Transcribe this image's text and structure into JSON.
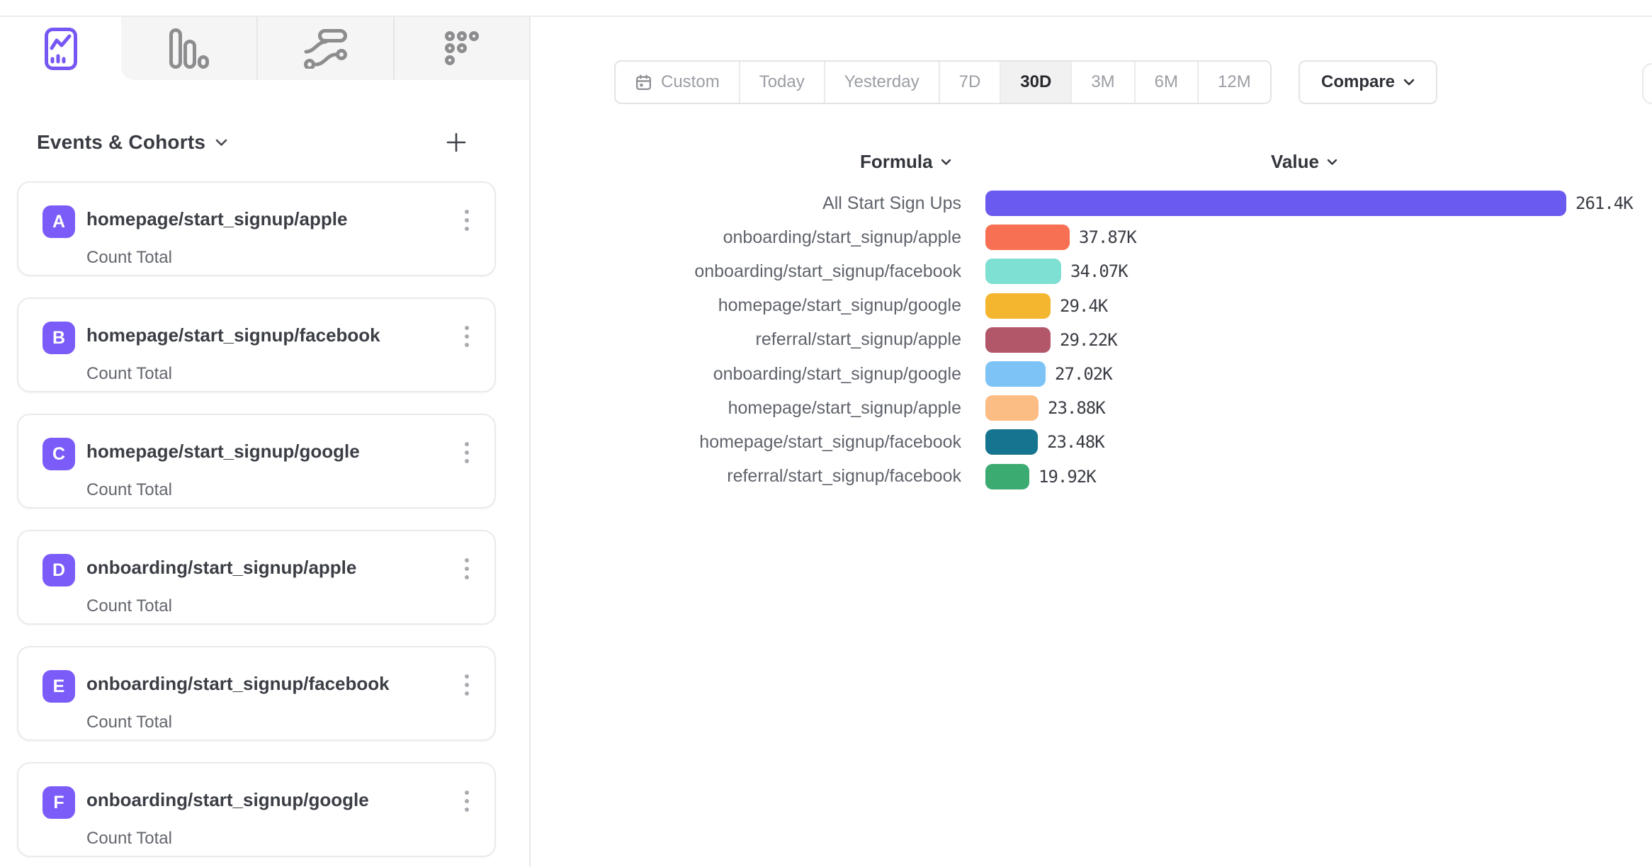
{
  "tab_bar": {
    "tabs": [
      {
        "name": "insights",
        "icon": "line-chart-icon",
        "active": true
      },
      {
        "name": "funnels",
        "icon": "bar-chart-icon",
        "active": false
      },
      {
        "name": "flows",
        "icon": "flows-icon",
        "active": false
      },
      {
        "name": "retention",
        "icon": "retention-icon",
        "active": false
      }
    ],
    "active_color": "#7757F3",
    "inactive_color": "#8d8d90"
  },
  "sidebar": {
    "title": "Events & Cohorts",
    "add_button": "+",
    "badge_color": "#7B5CF9",
    "cards": [
      {
        "badge": "A",
        "title": "homepage/start_signup/apple",
        "subtitle": "Count Total"
      },
      {
        "badge": "B",
        "title": "homepage/start_signup/facebook",
        "subtitle": "Count Total"
      },
      {
        "badge": "C",
        "title": "homepage/start_signup/google",
        "subtitle": "Count Total"
      },
      {
        "badge": "D",
        "title": "onboarding/start_signup/apple",
        "subtitle": "Count Total"
      },
      {
        "badge": "E",
        "title": "onboarding/start_signup/facebook",
        "subtitle": "Count Total"
      },
      {
        "badge": "F",
        "title": "onboarding/start_signup/google",
        "subtitle": "Count Total"
      }
    ]
  },
  "toolbar": {
    "date_ranges": [
      "Custom",
      "Today",
      "Yesterday",
      "7D",
      "30D",
      "3M",
      "6M",
      "12M"
    ],
    "active_range": "30D",
    "custom_icon": "calendar-icon",
    "compare_label": "Compare"
  },
  "chart_headers": {
    "formula": "Formula",
    "value": "Value"
  },
  "chart_data": {
    "type": "bar",
    "orientation": "horizontal",
    "title": "",
    "xlabel": "",
    "ylabel": "",
    "grid": false,
    "legend": false,
    "xlim": [
      0,
      261400
    ],
    "categories": [
      "All Start Sign Ups",
      "onboarding/start_signup/apple",
      "onboarding/start_signup/facebook",
      "homepage/start_signup/google",
      "referral/start_signup/apple",
      "onboarding/start_signup/google",
      "homepage/start_signup/apple",
      "homepage/start_signup/facebook",
      "referral/start_signup/facebook"
    ],
    "values": [
      261400,
      37870,
      34070,
      29400,
      29220,
      27020,
      23880,
      23480,
      19920
    ],
    "value_labels": [
      "261.4K",
      "37.87K",
      "34.07K",
      "29.4K",
      "29.22K",
      "27.02K",
      "23.88K",
      "23.48K",
      "19.92K"
    ],
    "bar_colors": [
      "#6A5AF0",
      "#F77053",
      "#7EE0D3",
      "#F4B62E",
      "#B25669",
      "#7EC3F6",
      "#FCBD84",
      "#15748F",
      "#3CAB72"
    ]
  }
}
